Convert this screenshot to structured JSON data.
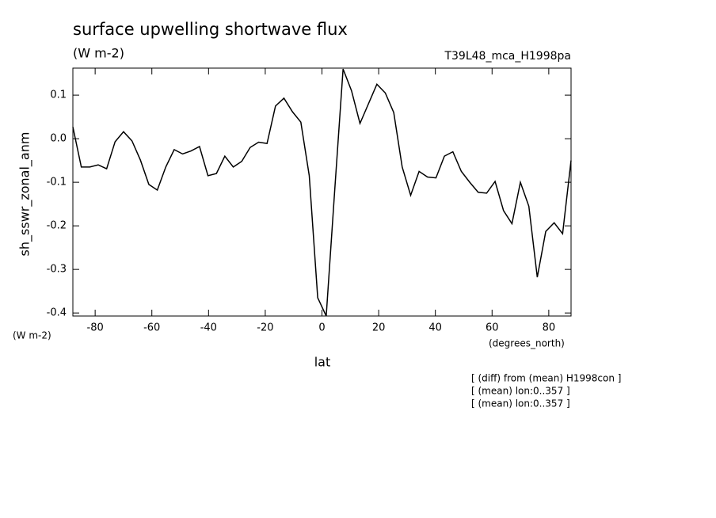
{
  "chart_data": {
    "type": "line",
    "title": "surface upwelling shortwave flux",
    "subtitle": "(W m-2)",
    "run_label": "T39L48_mca_H1998pa",
    "y_label": "sh_sswr_zonal_anm",
    "y_units": "(W m-2)",
    "x_units": "(degrees_north)",
    "x_label": "lat",
    "annotations": [
      "[ (diff) from (mean) H1998con ]",
      "[ (mean) lon:0..357 ]",
      "[ (mean) lon:0..357 ]"
    ],
    "x": [
      -87.86,
      -84.88,
      -81.9,
      -78.93,
      -75.95,
      -72.97,
      -69.99,
      -67.01,
      -64.04,
      -61.06,
      -58.08,
      -55.1,
      -52.12,
      -49.15,
      -46.17,
      -43.19,
      -40.21,
      -37.23,
      -34.26,
      -31.28,
      -28.3,
      -25.32,
      -22.34,
      -19.37,
      -16.39,
      -13.41,
      -10.43,
      -7.45,
      -4.48,
      -1.5,
      1.5,
      4.48,
      7.45,
      10.43,
      13.41,
      16.39,
      19.37,
      22.34,
      25.32,
      28.3,
      31.28,
      34.26,
      37.23,
      40.21,
      43.19,
      46.17,
      49.15,
      52.12,
      55.1,
      58.08,
      61.06,
      64.04,
      67.01,
      69.99,
      72.97,
      75.95,
      78.93,
      81.9,
      84.88,
      87.86
    ],
    "values": [
      0.027,
      -0.065,
      -0.065,
      -0.06,
      -0.069,
      -0.007,
      0.016,
      -0.005,
      -0.049,
      -0.105,
      -0.118,
      -0.065,
      -0.025,
      -0.035,
      -0.028,
      -0.018,
      -0.085,
      -0.08,
      -0.04,
      -0.065,
      -0.052,
      -0.02,
      -0.008,
      -0.011,
      0.075,
      0.093,
      0.062,
      0.038,
      -0.085,
      -0.365,
      -0.407,
      -0.12,
      0.16,
      0.11,
      0.035,
      0.08,
      0.125,
      0.105,
      0.06,
      -0.065,
      -0.13,
      -0.075,
      -0.088,
      -0.09,
      -0.04,
      -0.03,
      -0.075,
      -0.1,
      -0.123,
      -0.125,
      -0.098,
      -0.165,
      -0.195,
      -0.1,
      -0.155,
      -0.318,
      -0.213,
      -0.193,
      -0.218,
      -0.05
    ],
    "color": "#000000",
    "xlim": [
      -87.86,
      87.86
    ],
    "xticks": [
      -80,
      -60,
      -40,
      -20,
      0,
      20,
      40,
      60,
      80
    ],
    "ylim": [
      -0.407,
      0.162
    ],
    "yticks": [
      0.1,
      {
        "value": 0,
        "label": "0.0"
      },
      -0.1,
      -0.2,
      -0.3,
      -0.4
    ]
  }
}
